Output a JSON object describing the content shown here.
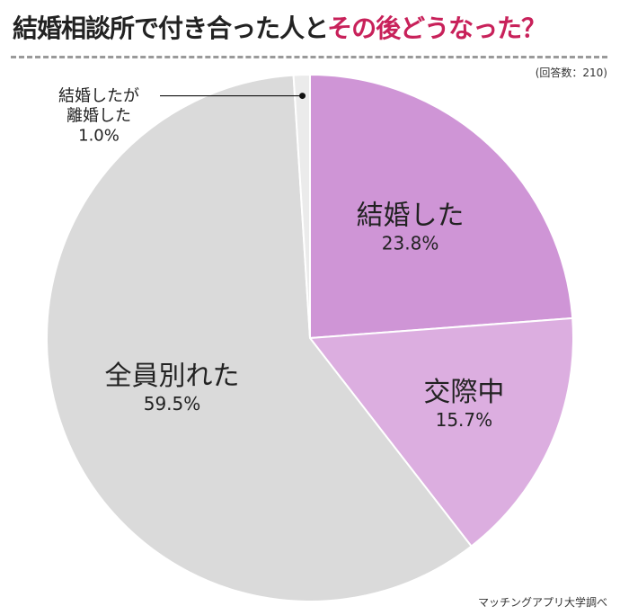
{
  "title": {
    "main": "結婚相談所で付き合った人と",
    "accent": "その後どうなった？"
  },
  "respondents": "(回答数：210)",
  "source": "マッチングアプリ大学調べ",
  "chart_data": {
    "type": "pie",
    "slices": [
      {
        "name": "結婚した",
        "value": 23.8,
        "label": "23.8%",
        "color": "#cf95d6"
      },
      {
        "name": "交際中",
        "value": 15.7,
        "label": "15.7%",
        "color": "#dcaee0"
      },
      {
        "name": "全員別れた",
        "value": 59.5,
        "label": "59.5%",
        "color": "#dadada"
      },
      {
        "name_lines": [
          "結婚したが",
          "離婚した"
        ],
        "value": 1.0,
        "label": "1.0%",
        "color": "#ebebeb"
      }
    ]
  }
}
